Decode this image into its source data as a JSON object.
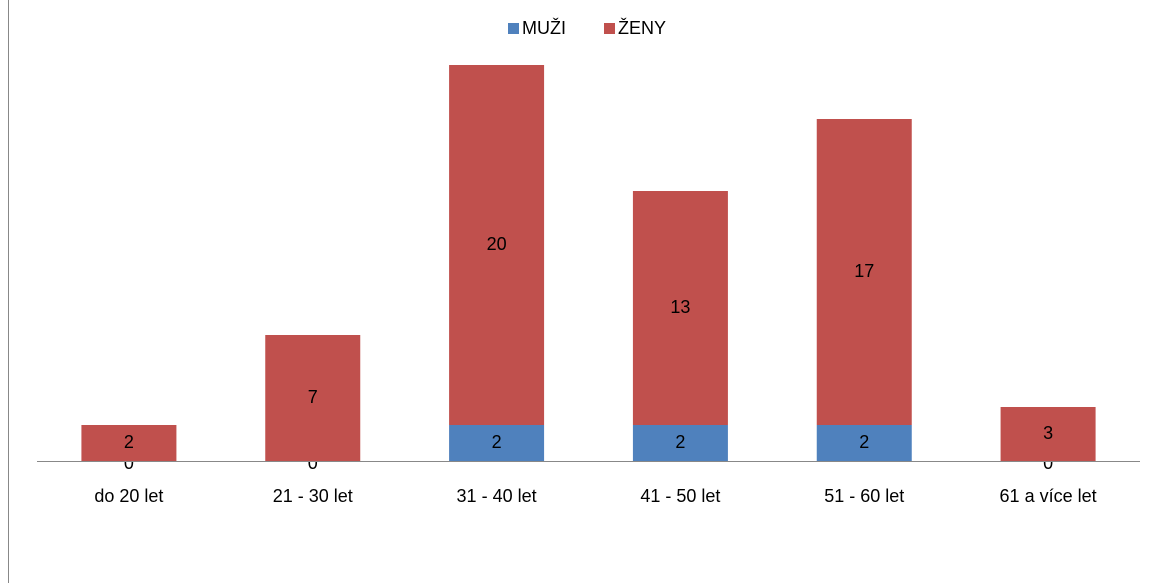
{
  "chart_data": {
    "type": "stacked-bar",
    "categories": [
      "do 20 let",
      "21 - 30 let",
      "31 - 40 let",
      "41 - 50 let",
      "51 - 60 let",
      "61 a více let"
    ],
    "series": [
      {
        "name": "MUŽI",
        "color": "#4f81bd",
        "values": [
          0,
          0,
          2,
          2,
          2,
          0
        ]
      },
      {
        "name": "ŽENY",
        "color": "#c0504d",
        "values": [
          2,
          7,
          20,
          13,
          17,
          3
        ]
      }
    ]
  }
}
